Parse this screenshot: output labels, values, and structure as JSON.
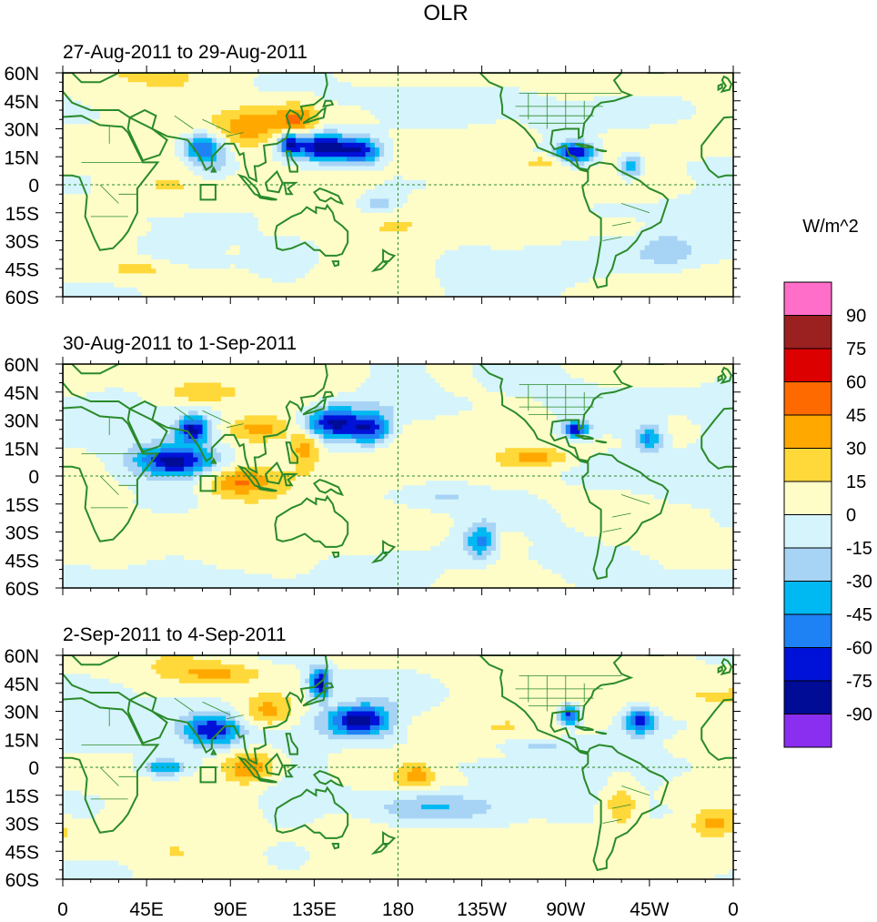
{
  "title": "OLR",
  "units": "W/m^2",
  "panels": [
    {
      "label": "27-Aug-2011 to 29-Aug-2011"
    },
    {
      "label": "30-Aug-2011 to 1-Sep-2011"
    },
    {
      "label": "2-Sep-2011 to 4-Sep-2011"
    }
  ],
  "lat_ticks": [
    "60N",
    "45N",
    "30N",
    "15N",
    "0",
    "15S",
    "30S",
    "45S",
    "60S"
  ],
  "lon_ticks": [
    "0",
    "45E",
    "90E",
    "135E",
    "180",
    "135W",
    "90W",
    "45W",
    "0"
  ],
  "colorbar": {
    "colors": [
      "#ff6ec8",
      "#9b2020",
      "#dd0000",
      "#ff6a00",
      "#ffa800",
      "#ffd83a",
      "#fefdc8",
      "#d6f4fb",
      "#a7d3f5",
      "#00b9f2",
      "#1e82f5",
      "#0012d8",
      "#000b96",
      "#8a2ef0"
    ],
    "labels": [
      "90",
      "75",
      "60",
      "45",
      "30",
      "15",
      "0",
      "-15",
      "-30",
      "-45",
      "-60",
      "-75",
      "-90"
    ]
  },
  "chart_data": {
    "type": "heatmap",
    "variable": "OLR",
    "units": "W/m^2",
    "lat_range": [
      -60,
      60
    ],
    "lon_range": [
      0,
      360
    ],
    "contour_levels": [
      -90,
      -75,
      -60,
      -45,
      -30,
      -15,
      0,
      15,
      30,
      45,
      60,
      75,
      90
    ],
    "periods": [
      "27-Aug-2011 to 29-Aug-2011",
      "30-Aug-2011 to 1-Sep-2011",
      "2-Sep-2011 to 4-Sep-2011"
    ],
    "anomalies": [
      [
        {
          "lon": 140,
          "lat": 20,
          "sx": 10,
          "sy": 5,
          "v": -85
        },
        {
          "lon": 160,
          "lat": 18,
          "sx": 8,
          "sy": 5,
          "v": -70
        },
        {
          "lon": 75,
          "lat": 20,
          "sx": 8,
          "sy": 5,
          "v": -60
        },
        {
          "lon": 122,
          "lat": 22,
          "sx": 4,
          "sy": 4,
          "v": -75
        },
        {
          "lon": 275,
          "lat": 17,
          "sx": 7,
          "sy": 4,
          "v": -80
        },
        {
          "lon": 305,
          "lat": 10,
          "sx": 4,
          "sy": 4,
          "v": -60
        },
        {
          "lon": 100,
          "lat": 30,
          "sx": 12,
          "sy": 8,
          "v": 40
        },
        {
          "lon": 125,
          "lat": 35,
          "sx": 8,
          "sy": 6,
          "v": 45
        },
        {
          "lon": 235,
          "lat": 25,
          "sx": 15,
          "sy": 5,
          "v": 20
        },
        {
          "lon": 260,
          "lat": 12,
          "sx": 10,
          "sy": 3,
          "v": 25
        },
        {
          "lon": 45,
          "lat": -45,
          "sx": 15,
          "sy": 4,
          "v": 20
        },
        {
          "lon": 170,
          "lat": -10,
          "sx": 8,
          "sy": 4,
          "v": -30
        },
        {
          "lon": 325,
          "lat": -35,
          "sx": 10,
          "sy": 6,
          "v": -20
        },
        {
          "lon": 80,
          "lat": 10,
          "sx": 10,
          "sy": 6,
          "v": -30
        }
      ],
      [
        {
          "lon": 60,
          "lat": 8,
          "sx": 15,
          "sy": 6,
          "v": -85
        },
        {
          "lon": 70,
          "lat": 25,
          "sx": 6,
          "sy": 5,
          "v": -75
        },
        {
          "lon": 145,
          "lat": 28,
          "sx": 10,
          "sy": 6,
          "v": -85
        },
        {
          "lon": 165,
          "lat": 25,
          "sx": 8,
          "sy": 6,
          "v": -75
        },
        {
          "lon": 275,
          "lat": 25,
          "sx": 5,
          "sy": 3,
          "v": -75
        },
        {
          "lon": 315,
          "lat": 20,
          "sx": 5,
          "sy": 5,
          "v": -50
        },
        {
          "lon": 225,
          "lat": -35,
          "sx": 6,
          "sy": 6,
          "v": -60
        },
        {
          "lon": 95,
          "lat": -3,
          "sx": 12,
          "sy": 5,
          "v": 40
        },
        {
          "lon": 105,
          "lat": 25,
          "sx": 12,
          "sy": 5,
          "v": 35
        },
        {
          "lon": 130,
          "lat": 15,
          "sx": 5,
          "sy": 6,
          "v": 40
        },
        {
          "lon": 75,
          "lat": 45,
          "sx": 15,
          "sy": 4,
          "v": 30
        },
        {
          "lon": 235,
          "lat": -35,
          "sx": 10,
          "sy": 5,
          "v": 25
        },
        {
          "lon": 255,
          "lat": 10,
          "sx": 12,
          "sy": 3,
          "v": 30
        },
        {
          "lon": 200,
          "lat": -10,
          "sx": 20,
          "sy": 5,
          "v": -20
        }
      ],
      [
        {
          "lon": 80,
          "lat": 20,
          "sx": 10,
          "sy": 6,
          "v": -70
        },
        {
          "lon": 160,
          "lat": 25,
          "sx": 12,
          "sy": 6,
          "v": -85
        },
        {
          "lon": 138,
          "lat": 45,
          "sx": 4,
          "sy": 6,
          "v": -80
        },
        {
          "lon": 310,
          "lat": 25,
          "sx": 6,
          "sy": 5,
          "v": -70
        },
        {
          "lon": 272,
          "lat": 28,
          "sx": 4,
          "sy": 4,
          "v": -75
        },
        {
          "lon": 200,
          "lat": -22,
          "sx": 25,
          "sy": 6,
          "v": -40
        },
        {
          "lon": 55,
          "lat": 0,
          "sx": 8,
          "sy": 3,
          "v": -50
        },
        {
          "lon": 100,
          "lat": 0,
          "sx": 10,
          "sy": 6,
          "v": 45
        },
        {
          "lon": 110,
          "lat": 30,
          "sx": 10,
          "sy": 6,
          "v": 35
        },
        {
          "lon": 80,
          "lat": 50,
          "sx": 20,
          "sy": 4,
          "v": 30
        },
        {
          "lon": 190,
          "lat": -5,
          "sx": 6,
          "sy": 4,
          "v": 35
        },
        {
          "lon": 300,
          "lat": -20,
          "sx": 6,
          "sy": 8,
          "v": 30
        },
        {
          "lon": 255,
          "lat": 12,
          "sx": 15,
          "sy": 3,
          "v": -25
        },
        {
          "lon": 350,
          "lat": -30,
          "sx": 8,
          "sy": 5,
          "v": 30
        }
      ]
    ]
  }
}
